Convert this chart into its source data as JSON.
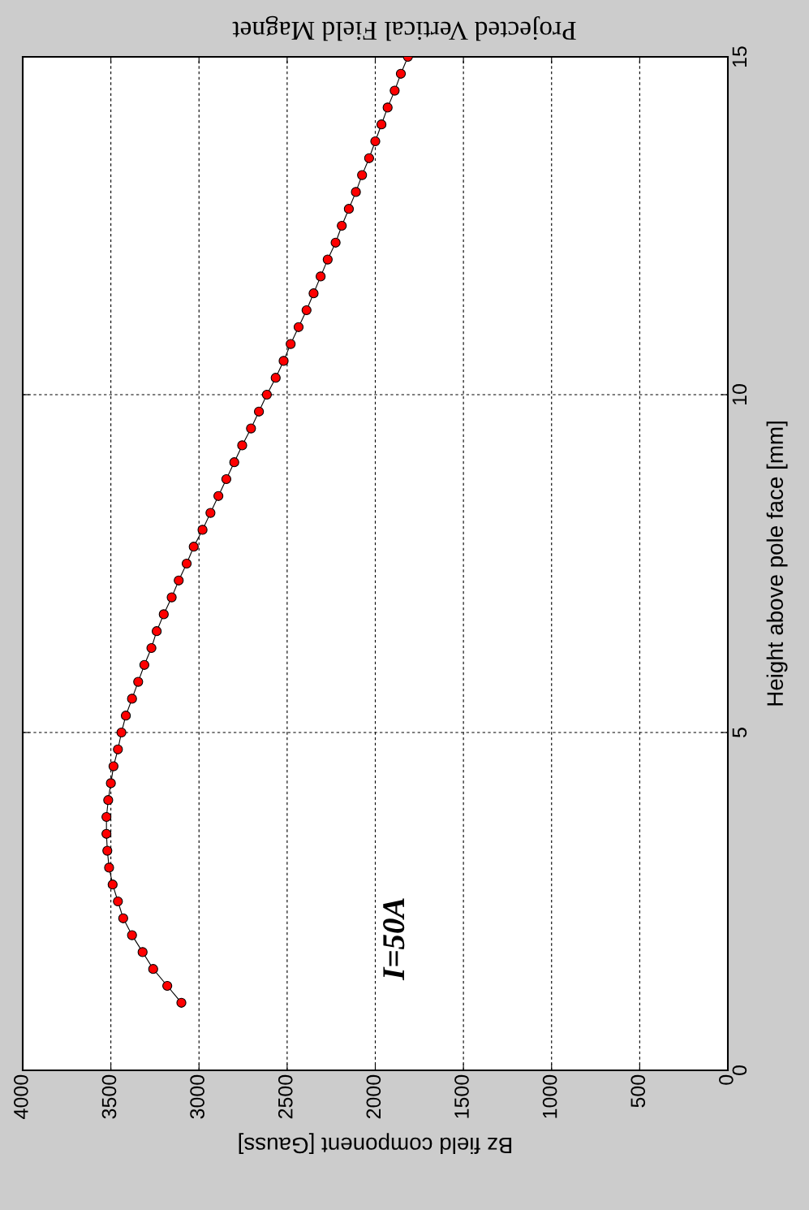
{
  "chart_data": {
    "type": "line",
    "title": "Projected Vertical Field Magnet",
    "xlabel": "Bz field component [Gauss]",
    "ylabel": "Height above pole face [mm]",
    "x": [
      3100,
      3180,
      3260,
      3320,
      3380,
      3430,
      3460,
      3490,
      3510,
      3520,
      3525,
      3525,
      3515,
      3500,
      3485,
      3460,
      3440,
      3415,
      3380,
      3345,
      3310,
      3270,
      3240,
      3200,
      3155,
      3115,
      3070,
      3030,
      2980,
      2935,
      2890,
      2845,
      2800,
      2755,
      2705,
      2660,
      2615,
      2565,
      2520,
      2480,
      2435,
      2390,
      2350,
      2310,
      2270,
      2225,
      2190,
      2150,
      2110,
      2075,
      2035,
      2000,
      1965,
      1930,
      1890,
      1855,
      1815
    ],
    "series": [
      {
        "color": "#ff0000",
        "values": [
          1.0,
          1.25,
          1.5,
          1.75,
          2.0,
          2.25,
          2.5,
          2.75,
          3.0,
          3.25,
          3.5,
          3.75,
          4.0,
          4.25,
          4.5,
          4.75,
          5.0,
          5.25,
          5.5,
          5.75,
          6.0,
          6.25,
          6.5,
          6.75,
          7.0,
          7.25,
          7.5,
          7.75,
          8.0,
          8.25,
          8.5,
          8.75,
          9.0,
          9.25,
          9.5,
          9.75,
          10.0,
          10.25,
          10.5,
          10.75,
          11.0,
          11.25,
          11.5,
          11.75,
          12.0,
          12.25,
          12.5,
          12.75,
          13.0,
          13.25,
          13.5,
          13.75,
          14.0,
          14.25,
          14.5,
          14.75,
          15.0
        ]
      }
    ],
    "xlim": [
      4000,
      0
    ],
    "xticks": [
      0,
      500,
      1000,
      1500,
      2000,
      2500,
      3000,
      3500,
      4000
    ],
    "ylim": [
      0,
      15
    ],
    "yticks": [
      0,
      5,
      10,
      15
    ],
    "grid": true,
    "marker": "circle",
    "line_style": "solid",
    "annotations": [
      "I=50A"
    ]
  }
}
